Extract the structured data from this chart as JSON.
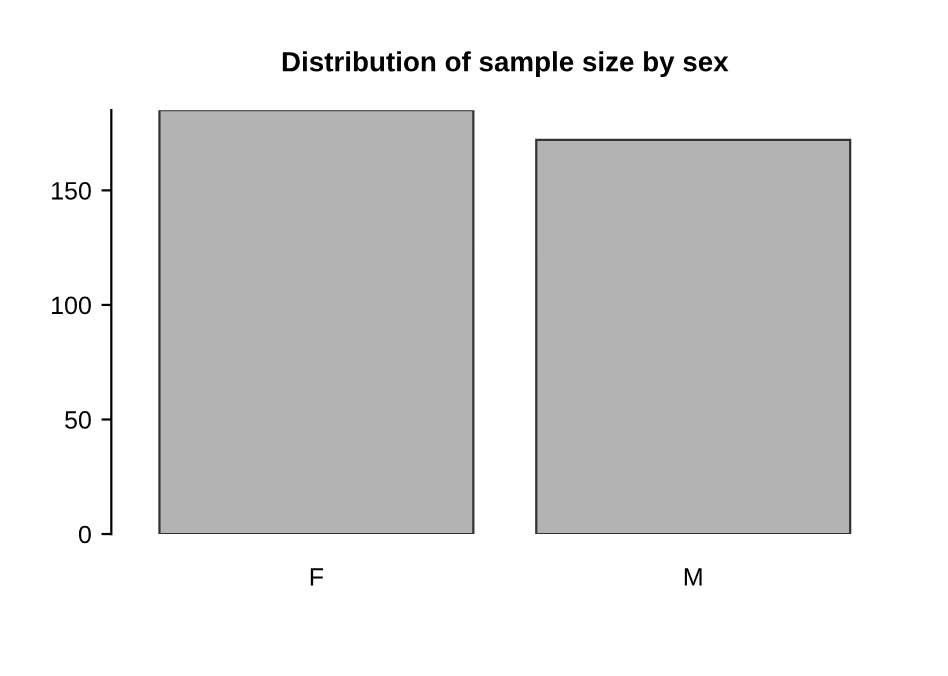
{
  "chart_data": {
    "type": "bar",
    "title": "Distribution of sample size by sex",
    "categories": [
      "F",
      "M"
    ],
    "values": [
      185,
      172
    ],
    "color": "#b3b3b3",
    "ylim": [
      0,
      185
    ],
    "yticks": [
      0,
      50,
      100,
      150
    ],
    "grid": false
  }
}
